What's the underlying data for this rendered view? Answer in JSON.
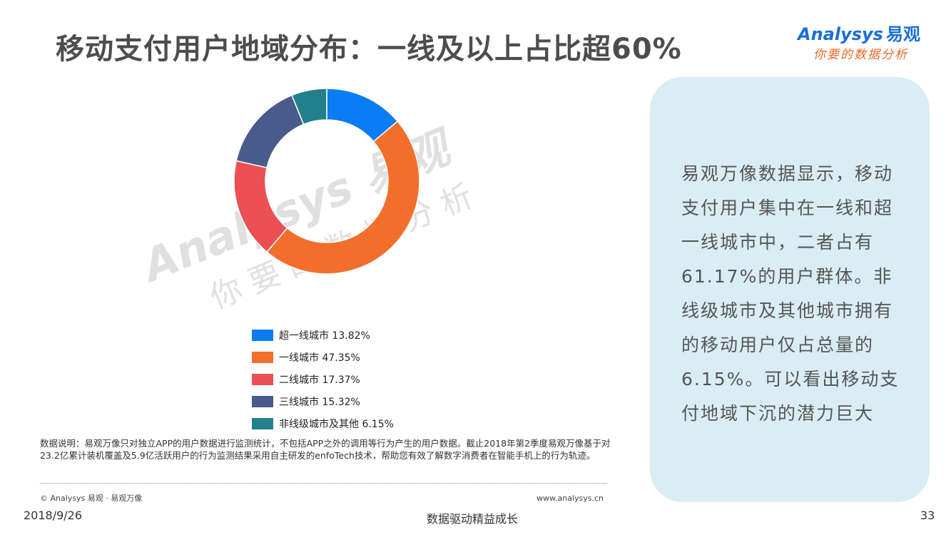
{
  "title": "移动支付用户地域分布：一线及以上占比超60%",
  "logo": {
    "brand": "Analysys",
    "brand_cn": "易观",
    "slogan": "你要的数据分析"
  },
  "watermark": {
    "brand": "Analysys 易观",
    "slogan": "你要的数据分析"
  },
  "chart_data": {
    "type": "pie",
    "donut": true,
    "categories": [
      "超一线城市",
      "一线城市",
      "二线城市",
      "三线城市",
      "非线级城市及其他"
    ],
    "values": [
      13.82,
      47.35,
      17.37,
      15.32,
      6.15
    ],
    "colors": [
      "#0a7cf5",
      "#f26e2b",
      "#ec4f54",
      "#495b8a",
      "#21808b"
    ],
    "labels": [
      "超一线城市 13.82%",
      "一线城市 47.35%",
      "二线城市 17.37%",
      "三线城市 15.32%",
      "非线级城市及其他 6.15%"
    ],
    "legend_position": "bottom"
  },
  "note": "数据说明：易观万像只对独立APP的用户数据进行监测统计，不包括APP之外的调用等行为产生的用户数据。截止2018年第2季度易观万像基于对23.2亿累计装机覆盖及5.9亿活跃用户的行为监测结果采用自主研发的enfoTech技术，帮助您有效了解数字消费者在智能手机上的行为轨迹。",
  "copyright": "© Analysys 易观 · 易观万像",
  "site": "www.analysys.cn",
  "panel_text": "易观万像数据显示，移动支付用户集中在一线和超一线城市中，二者占有61.17%的用户群体。非线级城市及其他城市拥有的移动用户仅占总量的6.15%。可以看出移动支付地域下沉的潜力巨大",
  "footer": {
    "date": "2018/9/26",
    "center": "数据驱动精益成长",
    "page": "33"
  }
}
